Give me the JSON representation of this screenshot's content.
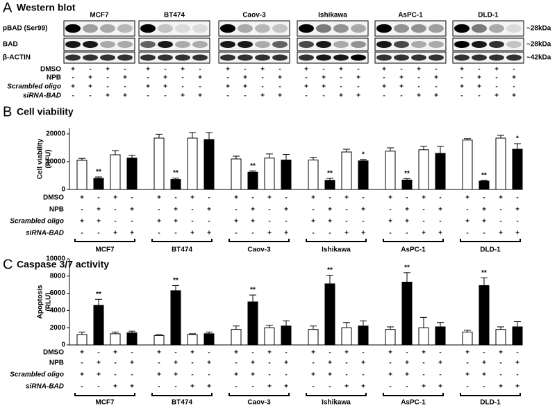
{
  "western_blot": {
    "panel": "A",
    "title": "Western blot",
    "cell_lines": [
      "MCF7",
      "BT474",
      "Caov-3",
      "Ishikawa",
      "AsPC-1",
      "DLD-1"
    ],
    "rows": [
      "pBAD (Ser99)",
      "BAD",
      "β-ACTIN"
    ],
    "size_markers": [
      "~28kDa",
      "~28kDa",
      "~42kDa"
    ],
    "treatments": [
      {
        "label": "DMSO",
        "signs": [
          "+",
          "-",
          "+",
          "-"
        ]
      },
      {
        "label": "NPB",
        "signs": [
          "-",
          "+",
          "-",
          "+"
        ]
      },
      {
        "label": "Scrambled oligo",
        "signs": [
          "+",
          "+",
          "-",
          "-"
        ]
      },
      {
        "label": "siRNA-BAD",
        "signs": [
          "-",
          "-",
          "+",
          "+"
        ]
      }
    ]
  },
  "chart_data": [
    {
      "type": "bar",
      "panel": "B",
      "title": "Cell viability",
      "ylabel": [
        "Cell viability",
        "(RFU)"
      ],
      "categories": [
        "MCF7",
        "BT474",
        "Caov-3",
        "Ishikawa",
        "AsPC-1",
        "DLD-1"
      ],
      "ylim": [
        0,
        22000
      ],
      "yticks": [
        0,
        10000,
        20000
      ],
      "series": [
        {
          "color": "#ffffff",
          "values": [
            10500,
            18500,
            11000,
            10600,
            13800,
            17800
          ],
          "errors": [
            700,
            1400,
            1000,
            1000,
            1200,
            500
          ]
        },
        {
          "color": "#000000",
          "values": [
            4000,
            3600,
            6200,
            3300,
            3400,
            3000
          ],
          "errors": [
            500,
            500,
            500,
            700,
            500,
            300
          ],
          "significance": [
            "**",
            "**",
            "**",
            "**",
            "**",
            "**"
          ]
        },
        {
          "color": "#ffffff",
          "values": [
            12500,
            18500,
            11300,
            13500,
            14300,
            18500
          ],
          "errors": [
            1500,
            2000,
            1500,
            1000,
            1200,
            1000
          ]
        },
        {
          "color": "#000000",
          "values": [
            11300,
            18000,
            10600,
            10300,
            13000,
            14500
          ],
          "errors": [
            1000,
            2500,
            2000,
            500,
            2500,
            2000
          ],
          "significance": [
            null,
            null,
            null,
            "*",
            null,
            "*"
          ]
        }
      ],
      "treatments": [
        {
          "label": "DMSO",
          "signs": [
            "+",
            "-",
            "+",
            "-"
          ]
        },
        {
          "label": "NPB",
          "signs": [
            "-",
            "+",
            "-",
            "+"
          ]
        },
        {
          "label": "Scrambled oligo",
          "signs": [
            "+",
            "+",
            "-",
            "-"
          ]
        },
        {
          "label": "siRNA-BAD",
          "signs": [
            "-",
            "-",
            "+",
            "+"
          ]
        }
      ]
    },
    {
      "type": "bar",
      "panel": "C",
      "title": "Caspase 3/7 activity",
      "ylabel": [
        "Apoptosis",
        "(RLU)"
      ],
      "categories": [
        "MCF7",
        "BT474",
        "Caov-3",
        "Ishikawa",
        "AsPC-1",
        "DLD-1"
      ],
      "ylim": [
        0,
        10000
      ],
      "yticks": [
        0,
        2000,
        4000,
        6000,
        8000,
        10000
      ],
      "series": [
        {
          "color": "#ffffff",
          "values": [
            1200,
            1100,
            1800,
            1800,
            1800,
            1500
          ],
          "errors": [
            300,
            100,
            400,
            400,
            300,
            200
          ]
        },
        {
          "color": "#000000",
          "values": [
            4600,
            6300,
            5000,
            7100,
            7300,
            6900
          ],
          "errors": [
            700,
            600,
            800,
            1000,
            1100,
            900
          ],
          "significance": [
            "**",
            "**",
            "**",
            "**",
            "**",
            "**"
          ]
        },
        {
          "color": "#ffffff",
          "values": [
            1300,
            1200,
            2000,
            2000,
            2000,
            1800
          ],
          "errors": [
            200,
            100,
            300,
            600,
            1200,
            300
          ]
        },
        {
          "color": "#000000",
          "values": [
            1400,
            1300,
            2200,
            2200,
            2100,
            2100
          ],
          "errors": [
            200,
            200,
            600,
            600,
            500,
            600
          ]
        }
      ],
      "treatments": [
        {
          "label": "DMSO",
          "signs": [
            "+",
            "-",
            "+",
            "-"
          ]
        },
        {
          "label": "NPB",
          "signs": [
            "-",
            "+",
            "-",
            "+"
          ]
        },
        {
          "label": "Scrambled oligo",
          "signs": [
            "+",
            "+",
            "-",
            "-"
          ]
        },
        {
          "label": "siRNA-BAD",
          "signs": [
            "-",
            "-",
            "+",
            "+"
          ]
        }
      ]
    }
  ]
}
